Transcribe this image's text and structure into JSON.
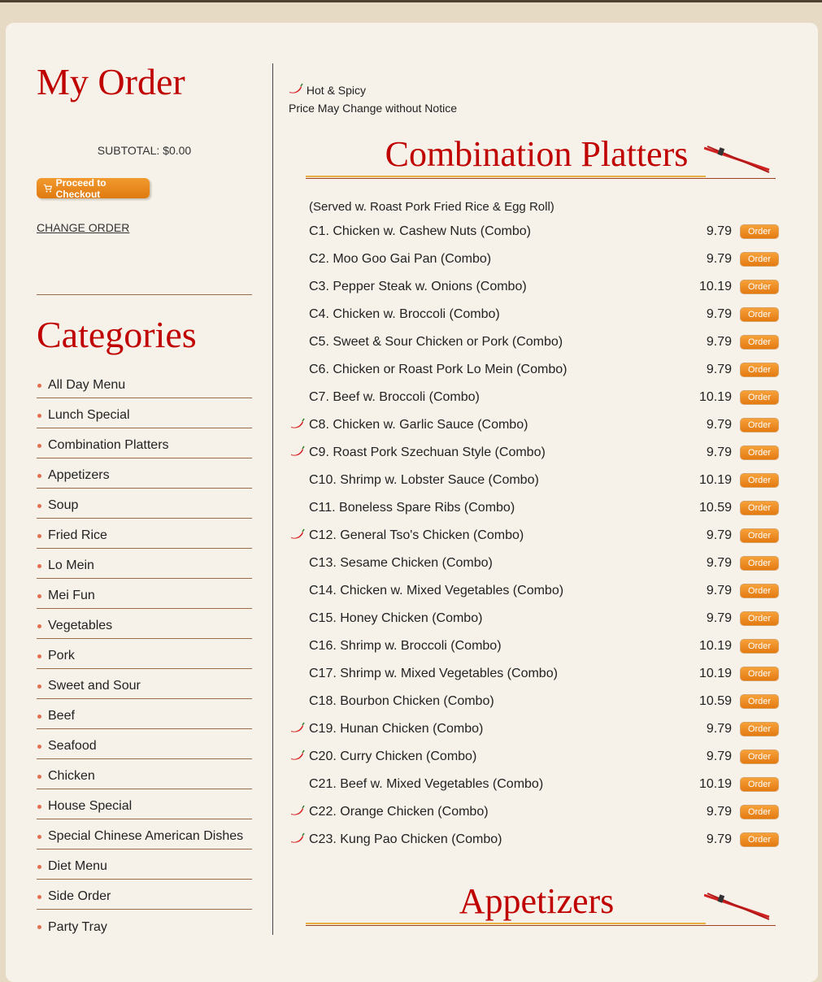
{
  "order": {
    "title": "My Order",
    "subtotal": "SUBTOTAL: $0.00",
    "checkout": "Proceed to Checkout",
    "change": "CHANGE ORDER"
  },
  "categories": {
    "title": "Categories",
    "items": [
      "All Day Menu",
      "Lunch Special",
      "Combination Platters",
      "Appetizers",
      "Soup",
      "Fried Rice",
      "Lo Mein",
      "Mei Fun",
      "Vegetables",
      "Pork",
      "Sweet and Sour",
      "Beef",
      "Seafood",
      "Chicken",
      "House Special",
      "Special Chinese American Dishes",
      "Diet Menu",
      "Side Order",
      "Party Tray"
    ]
  },
  "legend": {
    "spicy": "Hot & Spicy",
    "notice": "Price May Change without Notice"
  },
  "sections": [
    {
      "title": "Combination Platters",
      "note": "(Served w. Roast Pork Fried Rice & Egg Roll)",
      "order_label": "Order",
      "items": [
        {
          "name": "C1. Chicken w. Cashew Nuts (Combo)",
          "price": "9.79",
          "spicy": false
        },
        {
          "name": "C2. Moo Goo Gai Pan (Combo)",
          "price": "9.79",
          "spicy": false
        },
        {
          "name": "C3. Pepper Steak w. Onions (Combo)",
          "price": "10.19",
          "spicy": false
        },
        {
          "name": "C4. Chicken w. Broccoli (Combo)",
          "price": "9.79",
          "spicy": false
        },
        {
          "name": "C5. Sweet & Sour Chicken or Pork (Combo)",
          "price": "9.79",
          "spicy": false
        },
        {
          "name": "C6. Chicken or Roast Pork Lo Mein (Combo)",
          "price": "9.79",
          "spicy": false
        },
        {
          "name": "C7. Beef w. Broccoli (Combo)",
          "price": "10.19",
          "spicy": false
        },
        {
          "name": "C8. Chicken w. Garlic Sauce (Combo)",
          "price": "9.79",
          "spicy": true
        },
        {
          "name": "C9. Roast Pork Szechuan Style (Combo)",
          "price": "9.79",
          "spicy": true
        },
        {
          "name": "C10. Shrimp w. Lobster Sauce (Combo)",
          "price": "10.19",
          "spicy": false
        },
        {
          "name": "C11. Boneless Spare Ribs (Combo)",
          "price": "10.59",
          "spicy": false
        },
        {
          "name": "C12. General Tso's Chicken (Combo)",
          "price": "9.79",
          "spicy": true
        },
        {
          "name": "C13. Sesame Chicken (Combo)",
          "price": "9.79",
          "spicy": false
        },
        {
          "name": "C14. Chicken w. Mixed Vegetables (Combo)",
          "price": "9.79",
          "spicy": false
        },
        {
          "name": "C15. Honey Chicken (Combo)",
          "price": "9.79",
          "spicy": false
        },
        {
          "name": "C16. Shrimp w. Broccoli (Combo)",
          "price": "10.19",
          "spicy": false
        },
        {
          "name": "C17. Shrimp w. Mixed Vegetables (Combo)",
          "price": "10.19",
          "spicy": false
        },
        {
          "name": "C18. Bourbon Chicken (Combo)",
          "price": "10.59",
          "spicy": false
        },
        {
          "name": "C19. Hunan Chicken (Combo)",
          "price": "9.79",
          "spicy": true
        },
        {
          "name": "C20. Curry Chicken (Combo)",
          "price": "9.79",
          "spicy": true
        },
        {
          "name": "C21. Beef w. Mixed Vegetables (Combo)",
          "price": "10.19",
          "spicy": false
        },
        {
          "name": "C22. Orange Chicken (Combo)",
          "price": "9.79",
          "spicy": true
        },
        {
          "name": "C23. Kung Pao Chicken (Combo)",
          "price": "9.79",
          "spicy": true
        }
      ]
    },
    {
      "title": "Appetizers"
    }
  ],
  "colors": {
    "heading": "#c00000",
    "order_button": "#e47a12",
    "divider": "#9b6b4a"
  }
}
